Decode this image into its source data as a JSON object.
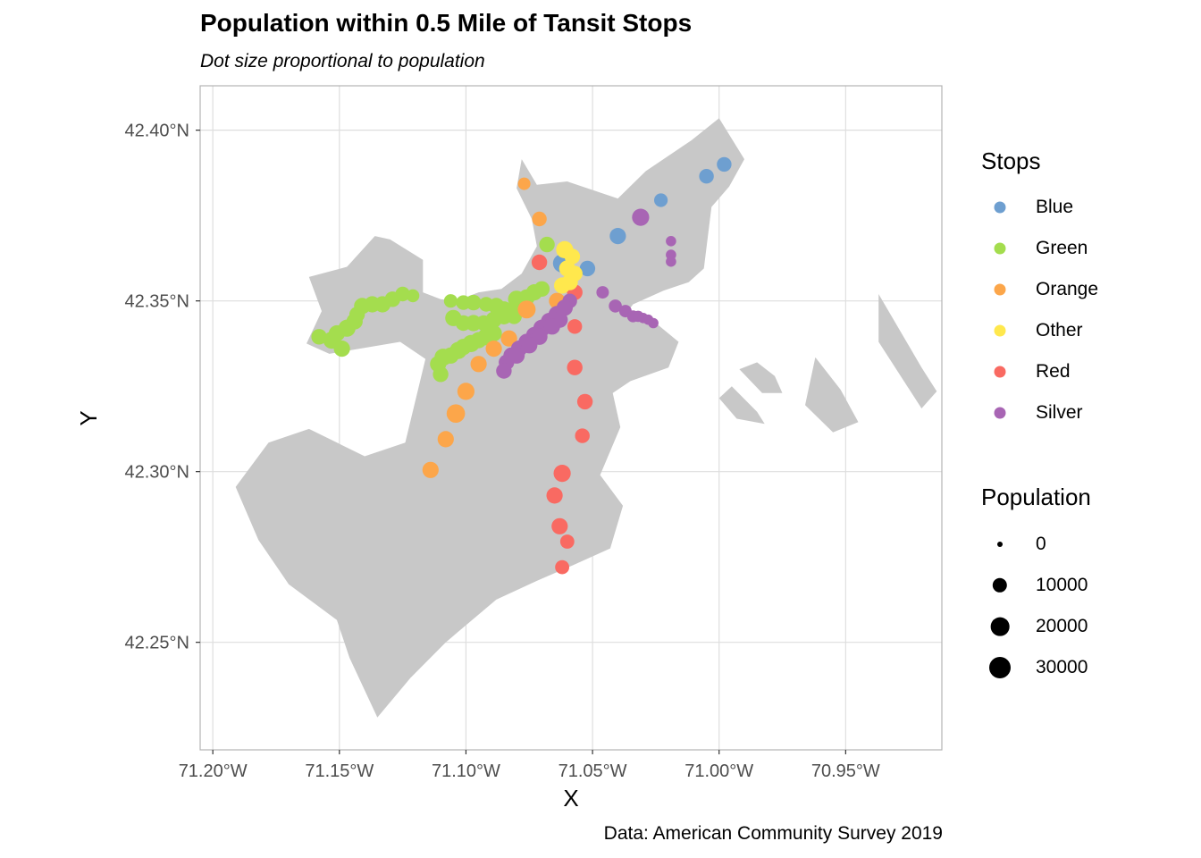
{
  "chart_data": {
    "type": "scatter",
    "title": "Population within 0.5 Mile of Tansit Stops",
    "subtitle": "Dot size proportional to population",
    "caption": "Data: American Community Survey 2019",
    "xlabel": "X",
    "ylabel": "Y",
    "xlim": [
      -71.205,
      -70.912
    ],
    "ylim": [
      42.2185,
      42.413
    ],
    "x_ticks": [
      {
        "value": -71.2,
        "label": "71.20°W"
      },
      {
        "value": -71.15,
        "label": "71.15°W"
      },
      {
        "value": -71.1,
        "label": "71.10°W"
      },
      {
        "value": -71.05,
        "label": "71.05°W"
      },
      {
        "value": -71.0,
        "label": "71.00°W"
      },
      {
        "value": -70.95,
        "label": "70.95°W"
      }
    ],
    "y_ticks": [
      {
        "value": 42.25,
        "label": "42.25°N"
      },
      {
        "value": 42.3,
        "label": "42.30°N"
      },
      {
        "value": 42.35,
        "label": "42.35°N"
      },
      {
        "value": 42.4,
        "label": "42.40°N"
      }
    ],
    "grid": true,
    "background_land_color": "#c8c8c8",
    "color_legend": {
      "title": "Stops",
      "entries": [
        {
          "name": "Blue",
          "color": "#6e9fd0"
        },
        {
          "name": "Green",
          "color": "#a4dd4e"
        },
        {
          "name": "Orange",
          "color": "#fca64a"
        },
        {
          "name": "Other",
          "color": "#ffe84d"
        },
        {
          "name": "Red",
          "color": "#f96a62"
        },
        {
          "name": "Silver",
          "color": "#a865b4"
        }
      ]
    },
    "size_legend": {
      "title": "Population",
      "entries": [
        {
          "label": "0",
          "value": 0
        },
        {
          "label": "10000",
          "value": 10000
        },
        {
          "label": "20000",
          "value": 20000
        },
        {
          "label": "30000",
          "value": 30000
        }
      ]
    },
    "series": [
      {
        "name": "Green",
        "color": "#a4dd4e",
        "points": [
          [
            -71.158,
            42.3395,
            12000
          ],
          [
            -71.153,
            42.3385,
            16000
          ],
          [
            -71.151,
            42.3405,
            14000
          ],
          [
            -71.149,
            42.336,
            14000
          ],
          [
            -71.147,
            42.342,
            16000
          ],
          [
            -71.144,
            42.344,
            14000
          ],
          [
            -71.143,
            42.346,
            12000
          ],
          [
            -71.141,
            42.3485,
            14000
          ],
          [
            -71.137,
            42.349,
            14000
          ],
          [
            -71.133,
            42.349,
            14000
          ],
          [
            -71.129,
            42.3505,
            12000
          ],
          [
            -71.125,
            42.352,
            10000
          ],
          [
            -71.121,
            42.3515,
            7000
          ],
          [
            -71.106,
            42.35,
            8000
          ],
          [
            -71.101,
            42.3495,
            10000
          ],
          [
            -71.097,
            42.3495,
            12000
          ],
          [
            -71.092,
            42.349,
            10000
          ],
          [
            -71.088,
            42.3485,
            14000
          ],
          [
            -71.085,
            42.3475,
            14000
          ],
          [
            -71.082,
            42.3465,
            14000
          ],
          [
            -71.08,
            42.3505,
            16000
          ],
          [
            -71.076,
            42.351,
            14000
          ],
          [
            -71.073,
            42.3525,
            14000
          ],
          [
            -71.07,
            42.3535,
            12000
          ],
          [
            -71.068,
            42.3665,
            12000
          ],
          [
            -71.105,
            42.345,
            14000
          ],
          [
            -71.101,
            42.3435,
            12000
          ],
          [
            -71.097,
            42.3435,
            14000
          ],
          [
            -71.093,
            42.3435,
            12000
          ],
          [
            -71.089,
            42.3445,
            14000
          ],
          [
            -71.085,
            42.3455,
            14000
          ],
          [
            -71.081,
            42.3455,
            12000
          ],
          [
            -71.111,
            42.3315,
            14000
          ],
          [
            -71.109,
            42.3335,
            16000
          ],
          [
            -71.106,
            42.334,
            14000
          ],
          [
            -71.103,
            42.3355,
            16000
          ],
          [
            -71.101,
            42.3365,
            14000
          ],
          [
            -71.098,
            42.3375,
            16000
          ],
          [
            -71.095,
            42.3385,
            14000
          ],
          [
            -71.092,
            42.3395,
            16000
          ],
          [
            -71.089,
            42.3405,
            14000
          ],
          [
            -71.11,
            42.3285,
            12000
          ]
        ]
      },
      {
        "name": "Orange",
        "color": "#fca64a",
        "points": [
          [
            -71.077,
            42.3843,
            6000
          ],
          [
            -71.071,
            42.374,
            10000
          ],
          [
            -71.076,
            42.3475,
            18000
          ],
          [
            -71.064,
            42.35,
            14000
          ],
          [
            -71.083,
            42.339,
            14000
          ],
          [
            -71.089,
            42.336,
            14000
          ],
          [
            -71.095,
            42.3315,
            14000
          ],
          [
            -71.1,
            42.3235,
            16000
          ],
          [
            -71.104,
            42.317,
            20000
          ],
          [
            -71.108,
            42.3095,
            14000
          ],
          [
            -71.114,
            42.3005,
            14000
          ]
        ]
      },
      {
        "name": "Red",
        "color": "#f96a62",
        "points": [
          [
            -71.071,
            42.3613,
            12000
          ],
          [
            -71.057,
            42.3525,
            12000
          ],
          [
            -71.057,
            42.3425,
            10000
          ],
          [
            -71.057,
            42.3305,
            12000
          ],
          [
            -71.053,
            42.3205,
            12000
          ],
          [
            -71.054,
            42.3105,
            10000
          ],
          [
            -71.062,
            42.2995,
            16000
          ],
          [
            -71.065,
            42.293,
            14000
          ],
          [
            -71.063,
            42.284,
            14000
          ],
          [
            -71.06,
            42.2795,
            9000
          ],
          [
            -71.062,
            42.272,
            9000
          ]
        ]
      },
      {
        "name": "Blue",
        "color": "#6e9fd0",
        "points": [
          [
            -71.062,
            42.361,
            20000
          ],
          [
            -71.052,
            42.3595,
            12000
          ],
          [
            -71.04,
            42.369,
            14000
          ],
          [
            -71.023,
            42.3795,
            8000
          ],
          [
            -71.005,
            42.3865,
            10000
          ],
          [
            -70.998,
            42.39,
            10000
          ]
        ]
      },
      {
        "name": "Other",
        "color": "#ffe84d",
        "points": [
          [
            -71.061,
            42.365,
            16000
          ],
          [
            -71.058,
            42.363,
            12000
          ],
          [
            -71.06,
            42.3595,
            14000
          ],
          [
            -71.057,
            42.358,
            12000
          ],
          [
            -71.062,
            42.3545,
            14000
          ],
          [
            -71.059,
            42.3555,
            14000
          ]
        ]
      },
      {
        "name": "Silver",
        "color": "#a865b4",
        "points": [
          [
            -71.031,
            42.3745,
            16000
          ],
          [
            -71.019,
            42.3675,
            3000
          ],
          [
            -71.019,
            42.3635,
            3000
          ],
          [
            -71.019,
            42.3615,
            3000
          ],
          [
            -71.046,
            42.3525,
            6000
          ],
          [
            -71.041,
            42.3485,
            7000
          ],
          [
            -71.037,
            42.347,
            6000
          ],
          [
            -71.034,
            42.3455,
            5000
          ],
          [
            -71.032,
            42.3455,
            4000
          ],
          [
            -71.03,
            42.345,
            3000
          ],
          [
            -71.028,
            42.3445,
            3000
          ],
          [
            -71.026,
            42.3435,
            3000
          ],
          [
            -71.059,
            42.35,
            10000
          ],
          [
            -71.061,
            42.348,
            14000
          ],
          [
            -71.064,
            42.346,
            16000
          ],
          [
            -71.067,
            42.344,
            16000
          ],
          [
            -71.07,
            42.342,
            16000
          ],
          [
            -71.073,
            42.34,
            14000
          ],
          [
            -71.076,
            42.338,
            14000
          ],
          [
            -71.079,
            42.336,
            14000
          ],
          [
            -71.082,
            42.334,
            14000
          ],
          [
            -71.084,
            42.332,
            12000
          ],
          [
            -71.085,
            42.3295,
            12000
          ],
          [
            -71.063,
            42.3445,
            14000
          ],
          [
            -71.066,
            42.3425,
            14000
          ],
          [
            -71.071,
            42.3395,
            14000
          ],
          [
            -71.075,
            42.337,
            14000
          ],
          [
            -71.08,
            42.334,
            14000
          ]
        ]
      }
    ],
    "land_polygons": [
      [
        [
          -71.191,
          42.2955
        ],
        [
          -71.178,
          42.3085
        ],
        [
          -71.162,
          42.3125
        ],
        [
          -71.14,
          42.3045
        ],
        [
          -71.124,
          42.3085
        ],
        [
          -71.116,
          42.333
        ],
        [
          -71.126,
          42.338
        ],
        [
          -71.154,
          42.3345
        ],
        [
          -71.163,
          42.3375
        ],
        [
          -71.157,
          42.347
        ],
        [
          -71.162,
          42.357
        ],
        [
          -71.147,
          42.36
        ],
        [
          -71.136,
          42.369
        ],
        [
          -71.13,
          42.368
        ],
        [
          -71.117,
          42.362
        ],
        [
          -71.117,
          42.3525
        ],
        [
          -71.11,
          42.3505
        ],
        [
          -71.104,
          42.35
        ],
        [
          -71.095,
          42.3525
        ],
        [
          -71.086,
          42.3535
        ],
        [
          -71.078,
          42.358
        ],
        [
          -71.072,
          42.366
        ],
        [
          -71.074,
          42.374
        ],
        [
          -71.08,
          42.383
        ],
        [
          -71.078,
          42.3915
        ],
        [
          -71.072,
          42.384
        ],
        [
          -71.06,
          42.385
        ],
        [
          -71.04,
          42.38
        ],
        [
          -71.029,
          42.388
        ],
        [
          -71.011,
          42.397
        ],
        [
          -71.0,
          42.4035
        ],
        [
          -70.99,
          42.3915
        ],
        [
          -70.996,
          42.3835
        ],
        [
          -71.003,
          42.3775
        ],
        [
          -71.006,
          42.3595
        ],
        [
          -71.012,
          42.3555
        ],
        [
          -71.022,
          42.353
        ],
        [
          -71.034,
          42.349
        ],
        [
          -71.037,
          42.346
        ],
        [
          -71.025,
          42.3435
        ],
        [
          -71.016,
          42.338
        ],
        [
          -71.02,
          42.3305
        ],
        [
          -71.035,
          42.3265
        ],
        [
          -71.042,
          42.323
        ],
        [
          -71.039,
          42.313
        ],
        [
          -71.047,
          42.299
        ],
        [
          -71.038,
          42.29
        ],
        [
          -71.043,
          42.2775
        ],
        [
          -71.058,
          42.2725
        ],
        [
          -71.072,
          42.268
        ],
        [
          -71.088,
          42.2625
        ],
        [
          -71.108,
          42.25
        ],
        [
          -71.122,
          42.2395
        ],
        [
          -71.135,
          42.228
        ],
        [
          -71.146,
          42.2455
        ],
        [
          -71.151,
          42.2565
        ],
        [
          -71.17,
          42.267
        ],
        [
          -71.182,
          42.28
        ]
      ],
      [
        [
          -71.05,
          42.3605
        ],
        [
          -71.036,
          42.38
        ],
        [
          -71.035,
          42.374
        ],
        [
          -71.048,
          42.361
        ]
      ],
      [
        [
          -70.985,
          42.332
        ],
        [
          -70.978,
          42.328
        ],
        [
          -70.975,
          42.323
        ],
        [
          -70.983,
          42.323
        ],
        [
          -70.992,
          42.33
        ]
      ],
      [
        [
          -70.995,
          42.325
        ],
        [
          -70.985,
          42.3175
        ],
        [
          -70.982,
          42.314
        ],
        [
          -70.993,
          42.3155
        ],
        [
          -71.0,
          42.3215
        ]
      ],
      [
        [
          -70.962,
          42.3335
        ],
        [
          -70.952,
          42.324
        ],
        [
          -70.945,
          42.3145
        ],
        [
          -70.955,
          42.3115
        ],
        [
          -70.966,
          42.3195
        ]
      ],
      [
        [
          -70.937,
          42.352
        ],
        [
          -70.92,
          42.3305
        ],
        [
          -70.914,
          42.3235
        ],
        [
          -70.92,
          42.3185
        ],
        [
          -70.937,
          42.338
        ]
      ]
    ]
  }
}
